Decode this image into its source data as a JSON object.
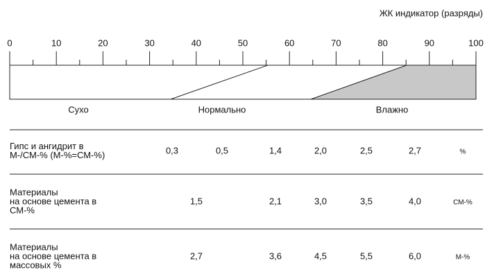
{
  "header": {
    "indicator": "ЖК индикатор (разряды)"
  },
  "scale": {
    "ticks": [
      0,
      10,
      20,
      30,
      40,
      50,
      60,
      70,
      80,
      90,
      100
    ],
    "zones": [
      "Сухо",
      "Нормально",
      "Влажно"
    ]
  },
  "table": {
    "rows": [
      {
        "label": [
          "Гипс и ангидрит в",
          "М-/СМ-% (М-%=СМ-%)"
        ],
        "values": [
          "0,3",
          "0,5",
          "1,4",
          "2,0",
          "2,5",
          "2,7"
        ],
        "unit": "%"
      },
      {
        "label": [
          "Материалы",
          "на основе цемента в",
          "СМ-%"
        ],
        "values": [
          "1,5",
          "2,1",
          "3,0",
          "3,5",
          "4,0"
        ],
        "unit": "СМ-%"
      },
      {
        "label": [
          "Материалы",
          "на основе цемента в",
          "массовых %"
        ],
        "values": [
          "2,7",
          "3,6",
          "4,5",
          "5,5",
          "6,0"
        ],
        "unit": "М-%"
      }
    ]
  }
}
